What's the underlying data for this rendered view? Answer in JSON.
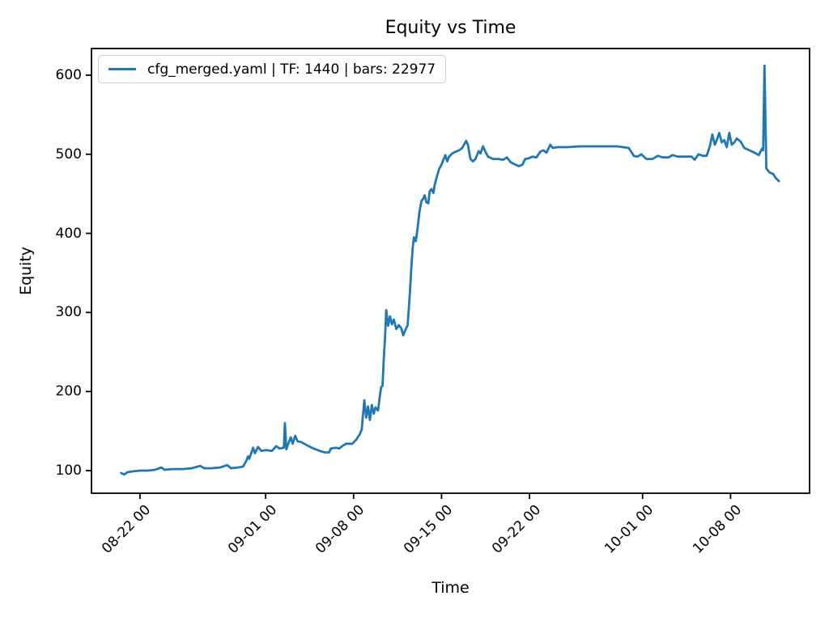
{
  "chart_data": {
    "type": "line",
    "title": "Equity vs Time",
    "xlabel": "Time",
    "ylabel": "Equity",
    "grid": false,
    "legend_position": "upper left",
    "background": "#ffffff",
    "spine_color": "#000000",
    "x_axis": {
      "unit": "date (MM-DD HH)",
      "t_reference": "t is in days; t=1.5 corresponds to tick 08-22 00",
      "xlim_t": [
        -2.36,
        54.79
      ],
      "ticks": [
        {
          "t": 1.5,
          "label": "08-22 00"
        },
        {
          "t": 11.5,
          "label": "09-01 00"
        },
        {
          "t": 18.5,
          "label": "09-08 00"
        },
        {
          "t": 25.5,
          "label": "09-15 00"
        },
        {
          "t": 32.5,
          "label": "09-22 00"
        },
        {
          "t": 41.5,
          "label": "10-01 00"
        },
        {
          "t": 48.5,
          "label": "10-08 00"
        }
      ]
    },
    "y_axis": {
      "ticks": [
        100,
        200,
        300,
        400,
        500,
        600
      ],
      "ylim": [
        71.4,
        633.7
      ]
    },
    "series": [
      {
        "name": "cfg_merged.yaml | TF: 1440 | bars: 22977",
        "color": "#1f77b4",
        "line_width": 2.8,
        "points": [
          [
            0,
            97
          ],
          [
            0.25,
            95
          ],
          [
            0.5,
            98
          ],
          [
            0.9,
            99
          ],
          [
            1.5,
            100
          ],
          [
            2.1,
            100
          ],
          [
            2.7,
            101
          ],
          [
            3.2,
            104
          ],
          [
            3.45,
            101
          ],
          [
            4.1,
            102
          ],
          [
            4.9,
            102
          ],
          [
            5.6,
            103
          ],
          [
            6.3,
            106
          ],
          [
            6.6,
            103
          ],
          [
            7.2,
            103
          ],
          [
            7.9,
            104
          ],
          [
            8.45,
            107
          ],
          [
            8.75,
            103
          ],
          [
            9.3,
            104
          ],
          [
            9.7,
            105
          ],
          [
            9.95,
            112
          ],
          [
            10.1,
            118
          ],
          [
            10.2,
            115
          ],
          [
            10.35,
            122
          ],
          [
            10.5,
            129
          ],
          [
            10.65,
            122
          ],
          [
            10.9,
            130
          ],
          [
            11.15,
            125
          ],
          [
            11.5,
            126
          ],
          [
            12.0,
            125
          ],
          [
            12.35,
            131
          ],
          [
            12.6,
            128
          ],
          [
            12.95,
            129
          ],
          [
            13.03,
            160
          ],
          [
            13.15,
            127
          ],
          [
            13.35,
            136
          ],
          [
            13.5,
            142
          ],
          [
            13.65,
            134
          ],
          [
            13.85,
            144
          ],
          [
            14.05,
            137
          ],
          [
            14.35,
            136
          ],
          [
            14.8,
            132
          ],
          [
            15.3,
            128
          ],
          [
            15.8,
            125
          ],
          [
            16.2,
            123
          ],
          [
            16.55,
            123
          ],
          [
            16.7,
            128
          ],
          [
            17.1,
            129
          ],
          [
            17.35,
            128
          ],
          [
            17.6,
            131
          ],
          [
            17.9,
            134
          ],
          [
            18.4,
            134
          ],
          [
            18.7,
            139
          ],
          [
            19.0,
            146
          ],
          [
            19.15,
            152
          ],
          [
            19.35,
            189
          ],
          [
            19.5,
            167
          ],
          [
            19.65,
            181
          ],
          [
            19.8,
            164
          ],
          [
            19.95,
            183
          ],
          [
            20.1,
            172
          ],
          [
            20.25,
            180
          ],
          [
            20.45,
            176
          ],
          [
            20.6,
            196
          ],
          [
            20.7,
            206
          ],
          [
            20.8,
            207
          ],
          [
            20.9,
            240
          ],
          [
            21.0,
            268
          ],
          [
            21.1,
            303
          ],
          [
            21.25,
            283
          ],
          [
            21.4,
            295
          ],
          [
            21.55,
            285
          ],
          [
            21.7,
            291
          ],
          [
            21.9,
            279
          ],
          [
            22.1,
            284
          ],
          [
            22.3,
            280
          ],
          [
            22.45,
            271
          ],
          [
            22.6,
            277
          ],
          [
            22.8,
            284
          ],
          [
            22.9,
            305
          ],
          [
            23.0,
            330
          ],
          [
            23.1,
            358
          ],
          [
            23.2,
            381
          ],
          [
            23.3,
            395
          ],
          [
            23.45,
            390
          ],
          [
            23.6,
            407
          ],
          [
            23.75,
            428
          ],
          [
            23.9,
            441
          ],
          [
            24.05,
            444
          ],
          [
            24.15,
            448
          ],
          [
            24.3,
            439
          ],
          [
            24.45,
            438
          ],
          [
            24.55,
            453
          ],
          [
            24.7,
            456
          ],
          [
            24.85,
            451
          ],
          [
            24.95,
            461
          ],
          [
            25.1,
            470
          ],
          [
            25.3,
            481
          ],
          [
            25.5,
            487
          ],
          [
            25.65,
            493
          ],
          [
            25.8,
            499
          ],
          [
            25.95,
            491
          ],
          [
            26.1,
            497
          ],
          [
            26.35,
            501
          ],
          [
            26.6,
            503
          ],
          [
            26.9,
            505
          ],
          [
            27.15,
            508
          ],
          [
            27.45,
            517
          ],
          [
            27.6,
            512
          ],
          [
            27.8,
            494
          ],
          [
            28.0,
            491
          ],
          [
            28.2,
            494
          ],
          [
            28.45,
            504
          ],
          [
            28.6,
            501
          ],
          [
            28.8,
            510
          ],
          [
            29.0,
            503
          ],
          [
            29.2,
            497
          ],
          [
            29.6,
            494
          ],
          [
            30.0,
            494
          ],
          [
            30.4,
            493
          ],
          [
            30.7,
            496
          ],
          [
            31.0,
            490
          ],
          [
            31.35,
            487
          ],
          [
            31.65,
            485
          ],
          [
            31.95,
            487
          ],
          [
            32.15,
            494
          ],
          [
            32.45,
            495
          ],
          [
            32.75,
            497
          ],
          [
            33.05,
            496
          ],
          [
            33.35,
            503
          ],
          [
            33.6,
            505
          ],
          [
            33.85,
            502
          ],
          [
            34.15,
            512
          ],
          [
            34.35,
            508
          ],
          [
            34.7,
            509
          ],
          [
            35.5,
            509
          ],
          [
            36.5,
            510
          ],
          [
            37.5,
            510
          ],
          [
            38.5,
            510
          ],
          [
            39.5,
            510
          ],
          [
            40.4,
            508
          ],
          [
            40.8,
            498
          ],
          [
            41.1,
            497
          ],
          [
            41.4,
            500
          ],
          [
            41.8,
            494
          ],
          [
            42.3,
            494
          ],
          [
            42.7,
            498
          ],
          [
            43.1,
            496
          ],
          [
            43.55,
            496
          ],
          [
            43.9,
            499
          ],
          [
            44.3,
            497
          ],
          [
            44.9,
            497
          ],
          [
            45.4,
            497
          ],
          [
            45.65,
            493
          ],
          [
            45.95,
            500
          ],
          [
            46.3,
            498
          ],
          [
            46.6,
            498
          ],
          [
            46.85,
            510
          ],
          [
            47.05,
            525
          ],
          [
            47.25,
            512
          ],
          [
            47.45,
            520
          ],
          [
            47.6,
            527
          ],
          [
            47.8,
            515
          ],
          [
            48.0,
            518
          ],
          [
            48.2,
            509
          ],
          [
            48.4,
            527
          ],
          [
            48.6,
            512
          ],
          [
            48.8,
            515
          ],
          [
            49.0,
            520
          ],
          [
            49.3,
            516
          ],
          [
            49.6,
            508
          ],
          [
            50.0,
            505
          ],
          [
            50.4,
            502
          ],
          [
            50.75,
            499
          ],
          [
            51.0,
            507
          ],
          [
            51.1,
            505
          ],
          [
            51.2,
            612
          ],
          [
            51.35,
            482
          ],
          [
            51.6,
            477
          ],
          [
            51.9,
            475
          ],
          [
            52.1,
            470
          ],
          [
            52.35,
            466
          ]
        ]
      }
    ]
  }
}
